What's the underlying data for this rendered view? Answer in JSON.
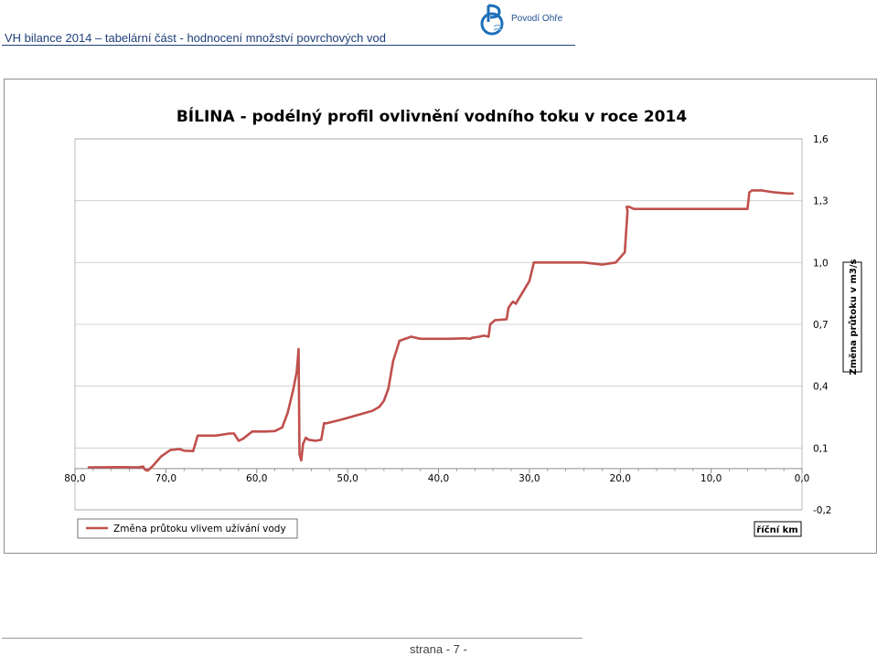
{
  "header": {
    "title": "VH bilance 2014 – tabelární  část - hodnocení množství povrchových vod",
    "logo_text": "Povodí Ohře"
  },
  "footer": {
    "page_label": "strana  - 7 -"
  },
  "colors": {
    "series": "#c0504d",
    "header_text": "#1f3f7a",
    "logo": "#1d6fb8"
  },
  "chart_data": {
    "type": "line",
    "title": "BÍLINA - podélný profil ovlivnění vodního toku v roce 2014",
    "xlabel": "říční km",
    "ylabel": "Změna průtoku v m3/s",
    "xlim": [
      80,
      0
    ],
    "x_reversed": true,
    "ylim": [
      -0.2,
      1.6
    ],
    "xticks": [
      "80,0",
      "70,0",
      "60,0",
      "50,0",
      "40,0",
      "30,0",
      "20,0",
      "10,0",
      "0,0"
    ],
    "xtick_values": [
      80,
      70,
      60,
      50,
      40,
      30,
      20,
      10,
      0
    ],
    "yticks": [
      "-0,2",
      "0,1",
      "0,4",
      "0,7",
      "1,0",
      "1,3",
      "1,6"
    ],
    "ytick_values": [
      -0.2,
      0.1,
      0.4,
      0.7,
      1.0,
      1.3,
      1.6
    ],
    "grid": "horizontal",
    "y_axis_side": "right",
    "legend_position": "bottom-left",
    "series": [
      {
        "name": "Změna průtoku vlivem užívání vody",
        "x": [
          78.5,
          75,
          73,
          72.5,
          72.3,
          72.0,
          71.5,
          70.5,
          69.5,
          68.5,
          68.0,
          67.0,
          66.5,
          65.5,
          64.5,
          63.0,
          62.5,
          62.0,
          61.5,
          60.5,
          59.0,
          58.0,
          57.2,
          56.6,
          56.0,
          55.6,
          55.4,
          55.3,
          55.1,
          54.9,
          54.6,
          54.3,
          53.5,
          52.9,
          52.6,
          52.3,
          50.5,
          48.5,
          47.3,
          46.5,
          46.0,
          45.5,
          45.0,
          44.3,
          43.0,
          42.0,
          41.0,
          39.0,
          37.0,
          36.5,
          36.3,
          35.5,
          35.0,
          34.5,
          34.3,
          33.8,
          32.5,
          32.3,
          32.0,
          31.8,
          31.5,
          30.0,
          29.5,
          28.0,
          26.0,
          24.0,
          22.0,
          20.5,
          19.5,
          19.2,
          19.3,
          19.0,
          18.5,
          17.0,
          15.0,
          10.0,
          6.0,
          5.8,
          5.5,
          5.2,
          4.5,
          3.0,
          1.5,
          1.0
        ],
        "values": [
          0.006,
          0.007,
          0.006,
          0.01,
          -0.005,
          -0.01,
          0.01,
          0.06,
          0.09,
          0.095,
          0.087,
          0.085,
          0.16,
          0.16,
          0.16,
          0.17,
          0.17,
          0.135,
          0.145,
          0.18,
          0.18,
          0.182,
          0.2,
          0.27,
          0.38,
          0.47,
          0.58,
          0.07,
          0.04,
          0.12,
          0.15,
          0.14,
          0.135,
          0.14,
          0.22,
          0.22,
          0.24,
          0.265,
          0.28,
          0.3,
          0.33,
          0.39,
          0.52,
          0.62,
          0.64,
          0.63,
          0.63,
          0.63,
          0.632,
          0.63,
          0.635,
          0.64,
          0.645,
          0.64,
          0.7,
          0.72,
          0.725,
          0.78,
          0.8,
          0.81,
          0.8,
          0.91,
          1.0,
          1.0,
          1.0,
          1.0,
          0.99,
          1.0,
          1.05,
          1.25,
          1.27,
          1.27,
          1.26,
          1.26,
          1.26,
          1.26,
          1.26,
          1.34,
          1.35,
          1.35,
          1.35,
          1.34,
          1.335,
          1.335
        ]
      }
    ]
  }
}
